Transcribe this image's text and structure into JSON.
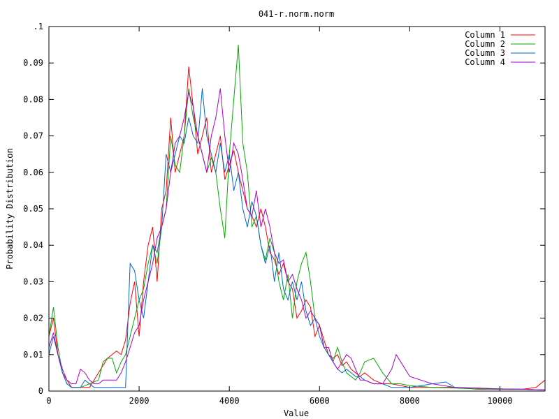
{
  "chart_data": {
    "type": "line",
    "title": "041-r.norm.norm",
    "xlabel": "Value",
    "ylabel": "Probability Distribution",
    "xlim": [
      0,
      11000
    ],
    "ylim": [
      0,
      0.1
    ],
    "xticks": [
      0,
      2000,
      4000,
      6000,
      8000,
      10000
    ],
    "xtick_labels": [
      "0",
      "2000",
      "4000",
      "6000",
      "8000",
      "10000"
    ],
    "yticks": [
      0,
      0.01,
      0.02,
      0.03,
      0.04,
      0.05,
      0.06,
      0.07,
      0.08,
      0.09,
      0.1
    ],
    "ytick_labels": [
      "0",
      "0.01",
      "0.02",
      "0.03",
      "0.04",
      "0.05",
      "0.06",
      "0.07",
      "0.08",
      "0.09",
      ".1"
    ],
    "grid": false,
    "legend_position": "top-right",
    "series": [
      {
        "name": "Column 1",
        "color": "#ff0000",
        "x": [
          0,
          100,
          200,
          300,
          400,
          500,
          700,
          900,
          1100,
          1300,
          1500,
          1600,
          1700,
          1800,
          1900,
          2000,
          2100,
          2200,
          2300,
          2400,
          2500,
          2600,
          2700,
          2800,
          2900,
          3000,
          3100,
          3200,
          3300,
          3400,
          3500,
          3600,
          3700,
          3800,
          3900,
          4000,
          4100,
          4200,
          4300,
          4400,
          4500,
          4600,
          4700,
          4800,
          4900,
          5000,
          5100,
          5200,
          5300,
          5400,
          5500,
          5600,
          5700,
          5800,
          5900,
          6000,
          6100,
          6200,
          6300,
          6400,
          6500,
          6600,
          6700,
          6800,
          6900,
          7000,
          7200,
          7400,
          7600,
          7800,
          8000,
          8500,
          9000,
          9500,
          10000,
          10500,
          10800,
          11000
        ],
        "y": [
          0.015,
          0.02,
          0.01,
          0.005,
          0.003,
          0.001,
          0.001,
          0.001,
          0.005,
          0.009,
          0.011,
          0.01,
          0.014,
          0.024,
          0.03,
          0.015,
          0.03,
          0.04,
          0.045,
          0.03,
          0.05,
          0.055,
          0.075,
          0.06,
          0.065,
          0.07,
          0.089,
          0.078,
          0.065,
          0.07,
          0.075,
          0.06,
          0.065,
          0.07,
          0.058,
          0.062,
          0.066,
          0.06,
          0.055,
          0.05,
          0.048,
          0.045,
          0.05,
          0.045,
          0.038,
          0.036,
          0.032,
          0.035,
          0.03,
          0.028,
          0.02,
          0.022,
          0.025,
          0.023,
          0.015,
          0.018,
          0.014,
          0.01,
          0.009,
          0.01,
          0.007,
          0.008,
          0.006,
          0.005,
          0.004,
          0.005,
          0.003,
          0.002,
          0.002,
          0.0015,
          0.001,
          0.001,
          0.001,
          0.0005,
          0.0005,
          0.0005,
          0.001,
          0.003
        ]
      },
      {
        "name": "Column 2",
        "color": "#00aa00",
        "x": [
          0,
          100,
          200,
          300,
          400,
          500,
          700,
          900,
          1100,
          1200,
          1300,
          1400,
          1500,
          1600,
          1700,
          1800,
          1900,
          2000,
          2100,
          2200,
          2300,
          2400,
          2500,
          2600,
          2700,
          2800,
          2900,
          3000,
          3100,
          3200,
          3300,
          3400,
          3500,
          3600,
          3700,
          3800,
          3900,
          4000,
          4100,
          4200,
          4300,
          4400,
          4500,
          4600,
          4700,
          4800,
          4900,
          5000,
          5100,
          5200,
          5300,
          5400,
          5500,
          5600,
          5700,
          5800,
          5900,
          6000,
          6100,
          6200,
          6300,
          6400,
          6500,
          6600,
          6700,
          6800,
          6900,
          7000,
          7200,
          7400,
          7600,
          7800,
          8000,
          8500,
          9000,
          9500,
          10000,
          10500,
          11000
        ],
        "y": [
          0.015,
          0.023,
          0.012,
          0.005,
          0.002,
          0.001,
          0.001,
          0.002,
          0.003,
          0.008,
          0.009,
          0.009,
          0.005,
          0.008,
          0.01,
          0.015,
          0.02,
          0.025,
          0.028,
          0.035,
          0.04,
          0.035,
          0.045,
          0.05,
          0.07,
          0.062,
          0.06,
          0.07,
          0.083,
          0.075,
          0.07,
          0.065,
          0.06,
          0.064,
          0.06,
          0.05,
          0.042,
          0.065,
          0.08,
          0.095,
          0.068,
          0.06,
          0.045,
          0.048,
          0.04,
          0.036,
          0.042,
          0.038,
          0.03,
          0.025,
          0.032,
          0.02,
          0.03,
          0.035,
          0.038,
          0.03,
          0.02,
          0.018,
          0.012,
          0.01,
          0.008,
          0.012,
          0.008,
          0.005,
          0.004,
          0.003,
          0.005,
          0.008,
          0.009,
          0.005,
          0.002,
          0.002,
          0.0015,
          0.001,
          0.0008,
          0.0006,
          0.0005,
          0.0005,
          0.0003
        ]
      },
      {
        "name": "Column 3",
        "color": "#0066cc",
        "x": [
          0,
          100,
          200,
          300,
          400,
          500,
          600,
          700,
          800,
          900,
          1000,
          1100,
          1200,
          1300,
          1400,
          1500,
          1600,
          1700,
          1800,
          1900,
          2000,
          2100,
          2200,
          2300,
          2400,
          2500,
          2600,
          2700,
          2800,
          2900,
          3000,
          3100,
          3200,
          3300,
          3400,
          3500,
          3600,
          3700,
          3800,
          3900,
          4000,
          4100,
          4200,
          4300,
          4400,
          4500,
          4600,
          4700,
          4800,
          4900,
          5000,
          5100,
          5200,
          5300,
          5400,
          5500,
          5600,
          5700,
          5800,
          5900,
          6000,
          6100,
          6200,
          6300,
          6400,
          6500,
          6600,
          6700,
          6800,
          6900,
          7000,
          7200,
          7400,
          7600,
          7800,
          8000,
          8500,
          8800,
          9000,
          9500,
          10000,
          10500,
          11000
        ],
        "y": [
          0.01,
          0.015,
          0.01,
          0.005,
          0.002,
          0.001,
          0.001,
          0.001,
          0.003,
          0.002,
          0.001,
          0.001,
          0.001,
          0.001,
          0.001,
          0.001,
          0.001,
          0.001,
          0.035,
          0.033,
          0.025,
          0.02,
          0.03,
          0.04,
          0.038,
          0.045,
          0.065,
          0.06,
          0.065,
          0.07,
          0.068,
          0.075,
          0.07,
          0.068,
          0.083,
          0.07,
          0.065,
          0.06,
          0.068,
          0.06,
          0.065,
          0.055,
          0.06,
          0.05,
          0.045,
          0.052,
          0.048,
          0.04,
          0.035,
          0.04,
          0.03,
          0.038,
          0.028,
          0.025,
          0.03,
          0.025,
          0.03,
          0.022,
          0.018,
          0.02,
          0.015,
          0.012,
          0.01,
          0.008,
          0.006,
          0.005,
          0.006,
          0.005,
          0.004,
          0.004,
          0.003,
          0.002,
          0.002,
          0.001,
          0.001,
          0.001,
          0.002,
          0.0025,
          0.001,
          0.0008,
          0.0006,
          0.0005,
          0.0003
        ]
      },
      {
        "name": "Column 4",
        "color": "#aa00cc",
        "x": [
          0,
          100,
          200,
          300,
          400,
          500,
          600,
          700,
          800,
          900,
          1000,
          1100,
          1200,
          1300,
          1400,
          1500,
          1600,
          1700,
          1800,
          1900,
          2000,
          2100,
          2200,
          2300,
          2400,
          2500,
          2600,
          2700,
          2800,
          2900,
          3000,
          3100,
          3200,
          3300,
          3400,
          3500,
          3600,
          3700,
          3800,
          3900,
          4000,
          4100,
          4200,
          4300,
          4400,
          4500,
          4600,
          4700,
          4800,
          4900,
          5000,
          5100,
          5200,
          5300,
          5400,
          5500,
          5600,
          5700,
          5800,
          5900,
          6000,
          6100,
          6200,
          6300,
          6400,
          6500,
          6600,
          6700,
          6800,
          6900,
          7000,
          7200,
          7400,
          7600,
          7700,
          7800,
          8000,
          8500,
          9000,
          9500,
          10000,
          10500,
          11000
        ],
        "y": [
          0.012,
          0.016,
          0.01,
          0.006,
          0.003,
          0.002,
          0.002,
          0.006,
          0.005,
          0.003,
          0.002,
          0.002,
          0.003,
          0.003,
          0.003,
          0.003,
          0.005,
          0.008,
          0.012,
          0.016,
          0.018,
          0.025,
          0.03,
          0.035,
          0.042,
          0.045,
          0.05,
          0.06,
          0.068,
          0.07,
          0.075,
          0.082,
          0.078,
          0.07,
          0.065,
          0.06,
          0.07,
          0.075,
          0.083,
          0.07,
          0.06,
          0.068,
          0.065,
          0.058,
          0.05,
          0.048,
          0.055,
          0.045,
          0.05,
          0.045,
          0.038,
          0.035,
          0.036,
          0.03,
          0.032,
          0.028,
          0.025,
          0.02,
          0.022,
          0.02,
          0.018,
          0.012,
          0.012,
          0.008,
          0.006,
          0.008,
          0.01,
          0.009,
          0.006,
          0.003,
          0.003,
          0.002,
          0.002,
          0.006,
          0.01,
          0.008,
          0.004,
          0.002,
          0.001,
          0.0008,
          0.0006,
          0.0005,
          0.0003
        ]
      }
    ]
  }
}
